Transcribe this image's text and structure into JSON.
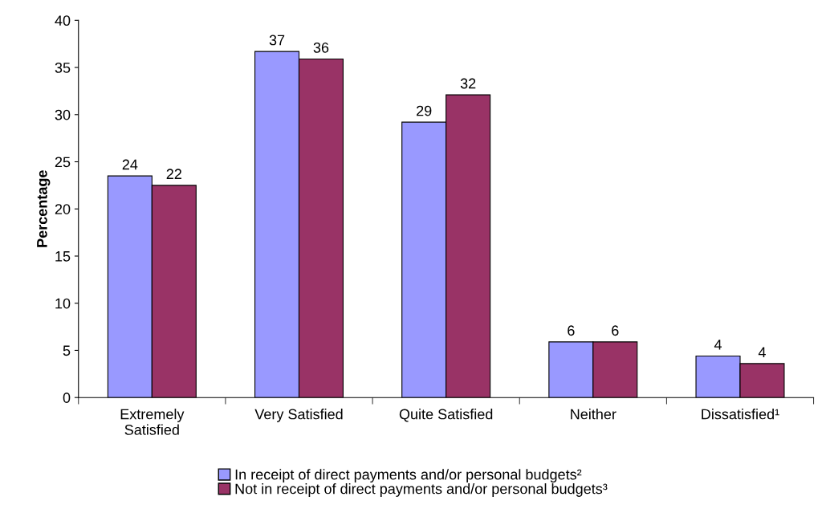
{
  "chart_data": {
    "type": "bar",
    "ylabel": "Percentage",
    "categories": [
      "Extremely\nSatisfied",
      "Very Satisfied",
      "Quite Satisfied",
      "Neither",
      "Dissatisfied¹"
    ],
    "series": [
      {
        "name": "In receipt of direct payments and/or personal budgets²",
        "color": "#9999ff",
        "values": [
          23.5,
          36.7,
          29.2,
          5.9,
          4.4
        ],
        "value_labels": [
          "24",
          "37",
          "29",
          "6",
          "4"
        ]
      },
      {
        "name": "Not in receipt of direct payments and/or personal budgets³",
        "color": "#993366",
        "values": [
          22.5,
          35.9,
          32.1,
          5.9,
          3.6
        ],
        "value_labels": [
          "22",
          "36",
          "32",
          "6",
          "4"
        ]
      }
    ],
    "ylim": [
      0,
      40
    ],
    "yticks": [
      0,
      5,
      10,
      15,
      20,
      25,
      30,
      35,
      40
    ],
    "grid": false,
    "legend": "bottom"
  }
}
